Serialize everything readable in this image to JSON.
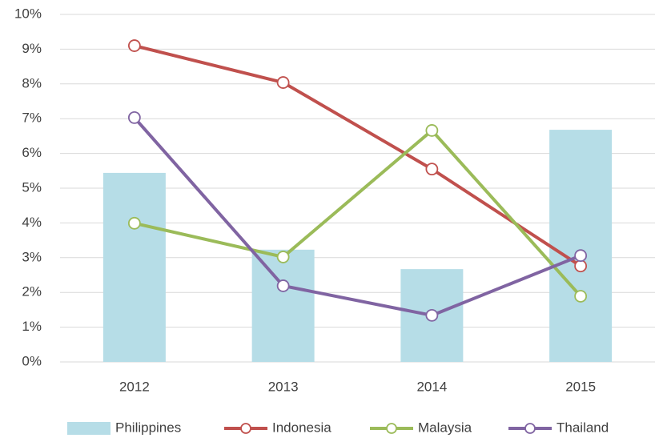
{
  "chart_data": {
    "type": "combo",
    "categories": [
      "2012",
      "2013",
      "2014",
      "2015"
    ],
    "ylim": [
      0,
      10
    ],
    "yticks": [
      {
        "value": 0,
        "label": "0%"
      },
      {
        "value": 1,
        "label": "1%"
      },
      {
        "value": 2,
        "label": "2%"
      },
      {
        "value": 3,
        "label": "3%"
      },
      {
        "value": 4,
        "label": "4%"
      },
      {
        "value": 5,
        "label": "5%"
      },
      {
        "value": 6,
        "label": "6%"
      },
      {
        "value": 7,
        "label": "7%"
      },
      {
        "value": 8,
        "label": "8%"
      },
      {
        "value": 9,
        "label": "9%"
      },
      {
        "value": 10,
        "label": "10%"
      }
    ],
    "grid": true,
    "legend": "bottom",
    "series": [
      {
        "name": "Philippines",
        "type": "bar",
        "color": "#b6dde7",
        "values": [
          5.44,
          3.23,
          2.67,
          6.68
        ]
      },
      {
        "name": "Indonesia",
        "type": "line",
        "color": "#c0504d",
        "values": [
          9.1,
          8.04,
          5.55,
          2.76
        ]
      },
      {
        "name": "Malaysia",
        "type": "line",
        "color": "#9bbb59",
        "values": [
          3.99,
          3.02,
          6.66,
          1.89
        ]
      },
      {
        "name": "Thailand",
        "type": "line",
        "color": "#8064a2",
        "values": [
          7.03,
          2.19,
          1.34,
          3.06
        ]
      }
    ]
  }
}
